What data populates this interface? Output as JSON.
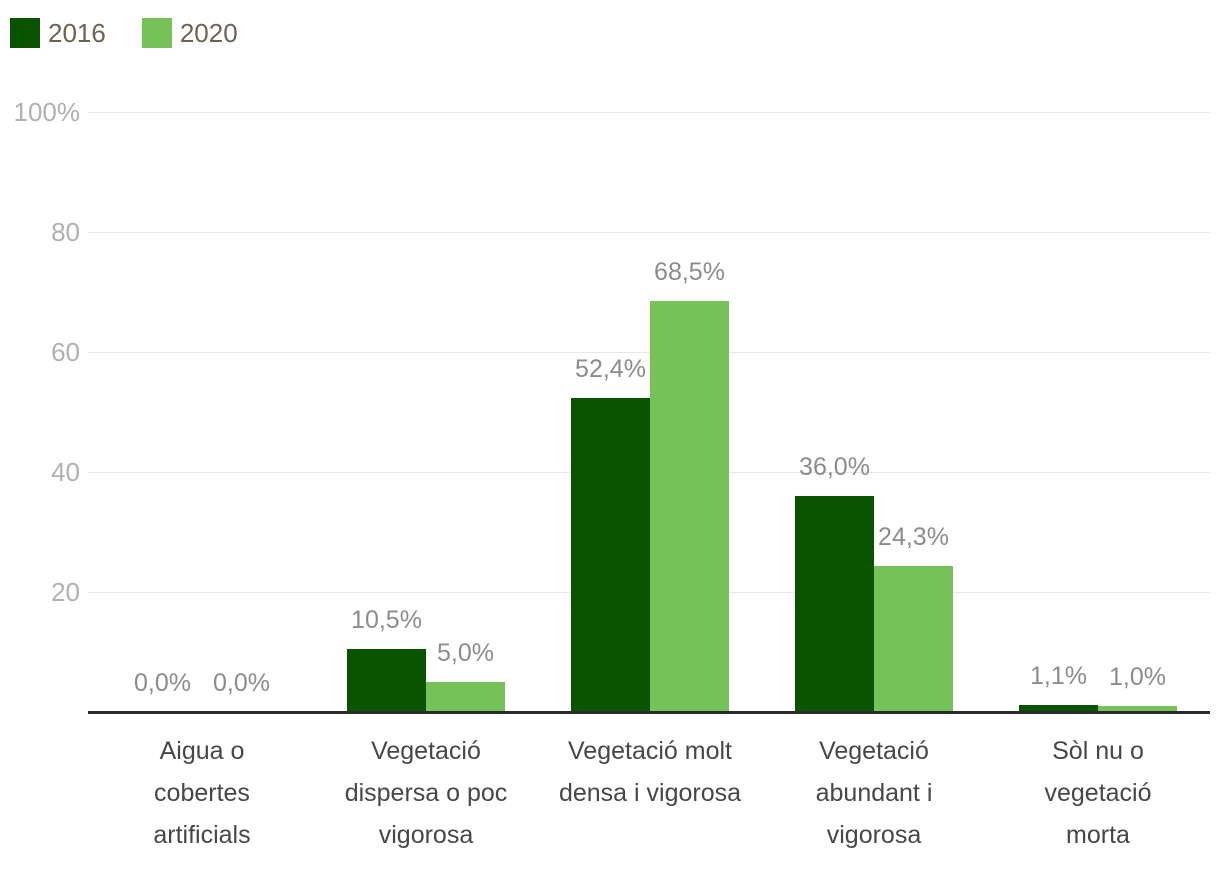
{
  "legend": {
    "items": [
      {
        "label": "2016"
      },
      {
        "label": "2020"
      }
    ]
  },
  "chart_data": {
    "type": "bar",
    "title": "",
    "categories": [
      "Aigua o cobertes artificials",
      "Vegetació dispersa o poc vigorosa",
      "Vegetació molt densa i vigorosa",
      "Vegetació abundant i vigorosa",
      "Sòl nu o vegetació morta"
    ],
    "category_lines": [
      [
        "Aigua o",
        "cobertes",
        "artificials"
      ],
      [
        "Vegetació",
        "dispersa o poc",
        "vigorosa"
      ],
      [
        "Vegetació molt",
        "densa i vigorosa"
      ],
      [
        "Vegetació",
        "abundant i",
        "vigorosa"
      ],
      [
        "Sòl nu o",
        "vegetació",
        "morta"
      ]
    ],
    "series": [
      {
        "name": "2016",
        "color": "#0a5300",
        "values": [
          0.0,
          10.5,
          52.4,
          36.0,
          1.1
        ],
        "labels": [
          "0,0%",
          "10,5%",
          "52,4%",
          "36,0%",
          "1,1%"
        ]
      },
      {
        "name": "2020",
        "color": "#76c158",
        "values": [
          0.0,
          5.0,
          68.5,
          24.3,
          1.0
        ],
        "labels": [
          "0,0%",
          "5,0%",
          "68,5%",
          "24,3%",
          "1,0%"
        ]
      }
    ],
    "yticks": [
      {
        "value": 100,
        "label": "100%"
      },
      {
        "value": 80,
        "label": "80"
      },
      {
        "value": 60,
        "label": "60"
      },
      {
        "value": 40,
        "label": "40"
      },
      {
        "value": 20,
        "label": "20"
      }
    ],
    "ylim": [
      0,
      100
    ],
    "xlabel": "",
    "ylabel": "",
    "grid": true,
    "legend_position": "top-left",
    "colors": {
      "grid": "#e7e7e7",
      "axis": "#2b2b2b",
      "tick_text": "#b3b0ad",
      "value_text": "#8c8c8c",
      "category_text": "#474747",
      "legend_text": "#6e6156"
    }
  }
}
